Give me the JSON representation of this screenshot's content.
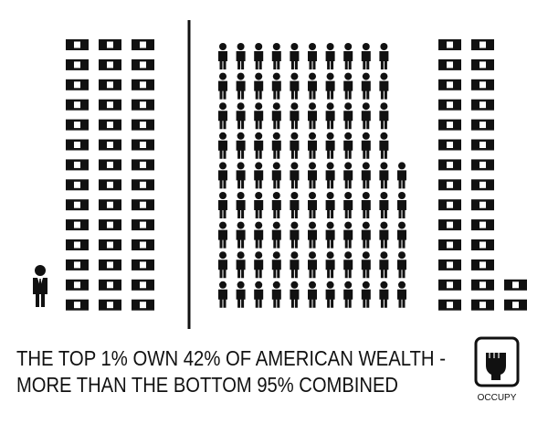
{
  "headline": {
    "line1": "THE TOP 1% OWN 42% OF AMERICAN WEALTH -",
    "line2": "MORE THAN THE BOTTOM 95% COMBINED"
  },
  "logo": {
    "label": "OCCUPY"
  },
  "groups": [
    {
      "people": 1,
      "bills": 42
    },
    {
      "people": 95,
      "bills": 30
    }
  ]
}
